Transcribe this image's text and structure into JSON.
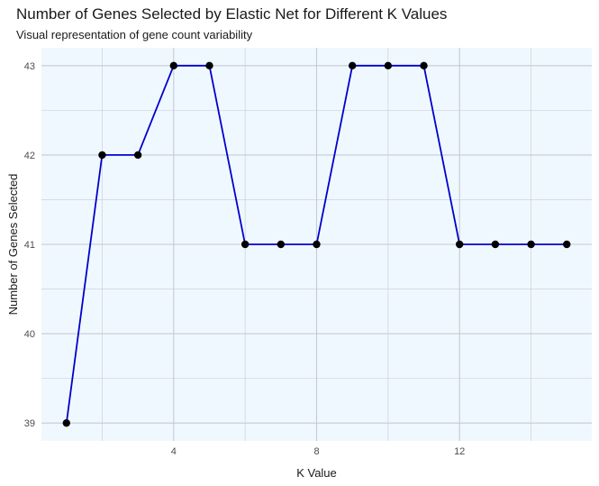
{
  "chart_data": {
    "type": "line",
    "title": "Number of Genes Selected by Elastic Net for Different K Values",
    "subtitle": "Visual representation of gene count variability",
    "xlabel": "K Value",
    "ylabel": "Number of Genes Selected",
    "x": [
      1,
      2,
      3,
      4,
      5,
      6,
      7,
      8,
      9,
      10,
      11,
      12,
      13,
      14,
      15
    ],
    "y": [
      39,
      42,
      42,
      43,
      43,
      41,
      41,
      41,
      43,
      43,
      43,
      41,
      41,
      41,
      41
    ],
    "xlim": [
      0.3,
      15.7
    ],
    "ylim": [
      38.8,
      43.2
    ],
    "x_ticks": [
      4,
      8,
      12
    ],
    "x_minor_ticks": [
      2,
      6,
      10,
      14
    ],
    "y_ticks": [
      39,
      40,
      41,
      42,
      43
    ],
    "line_color": "#0000CD",
    "point_color": "#000000",
    "panel_background": "#F0F8FF",
    "grid_color": "#C5CAD3",
    "grid": true,
    "legend": "none"
  }
}
